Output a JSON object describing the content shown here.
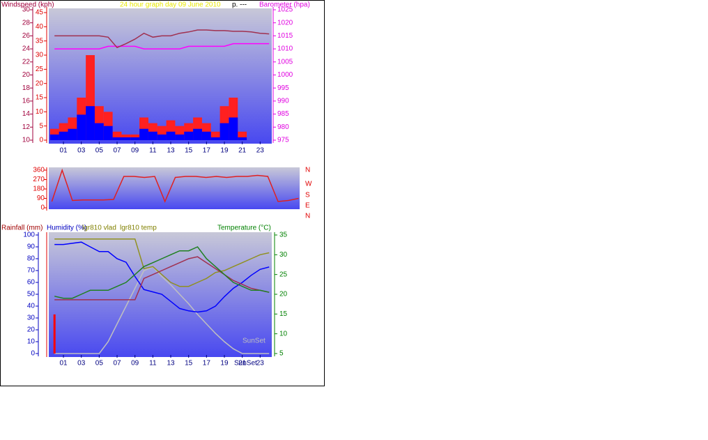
{
  "chart_data": [
    {
      "type": "line",
      "labels": [
        "Windspeed (kph)",
        "24 hour graph day   09 June 2010",
        "p.  ---",
        "Barometer (hpa)"
      ],
      "x": [
        0,
        1,
        2,
        3,
        4,
        5,
        6,
        7,
        8,
        9,
        10,
        11,
        12,
        13,
        14,
        15,
        16,
        17,
        18,
        19,
        20,
        21,
        22,
        23,
        24
      ],
      "xlim": [
        -0.64,
        24.3
      ],
      "xticks": [
        {
          "value": 1,
          "label": "01"
        },
        {
          "value": 3,
          "label": "03"
        },
        {
          "value": 5,
          "label": "05"
        },
        {
          "value": 7,
          "label": "07"
        },
        {
          "value": 9,
          "label": "09"
        },
        {
          "value": 11,
          "label": "11"
        },
        {
          "value": 13,
          "label": "13"
        },
        {
          "value": 15,
          "label": "15"
        },
        {
          "value": 17,
          "label": "17"
        },
        {
          "value": 19,
          "label": "19"
        },
        {
          "value": 21,
          "label": "21"
        },
        {
          "value": 23,
          "label": "23"
        }
      ],
      "ylim": [
        0,
        46
      ],
      "yticks": [
        0,
        5,
        10,
        15,
        20,
        25,
        30,
        35,
        40,
        45
      ],
      "y3lim": [
        10,
        30
      ],
      "y3ticks": [
        10,
        12,
        14,
        16,
        18,
        20,
        22,
        24,
        26,
        28,
        30
      ],
      "y2lim": [
        975,
        1025
      ],
      "y2ticks": [
        975,
        980,
        985,
        990,
        995,
        1000,
        1005,
        1010,
        1015,
        1020,
        1025
      ],
      "series": [
        {
          "color": "#ff2020",
          "kind": "bar",
          "values": [
            4,
            6,
            8,
            15,
            30,
            12,
            10,
            3,
            2,
            2,
            8,
            6,
            5,
            7,
            5,
            6,
            8,
            6,
            3,
            12,
            15,
            3,
            0,
            0,
            0
          ]
        },
        {
          "color": "#0000ff",
          "kind": "bar",
          "values": [
            2,
            3,
            4,
            9,
            12,
            6,
            5,
            1,
            1,
            1,
            4,
            3,
            2,
            3,
            2,
            3,
            4,
            3,
            1,
            6,
            8,
            1,
            0,
            0,
            0
          ]
        },
        {
          "color": "#ff00ff",
          "axis": "y2",
          "values": [
            1010,
            1010,
            1010,
            1010,
            1010,
            1010,
            1011,
            1011,
            1011,
            1011,
            1010,
            1010,
            1010,
            1010,
            1010,
            1011,
            1011,
            1011,
            1011,
            1011,
            1012,
            1012,
            1012,
            1012,
            1012
          ]
        },
        {
          "color": "#a03050",
          "axis": "y3",
          "values": [
            26,
            26,
            26,
            26,
            26,
            26,
            25.8,
            24.2,
            24.8,
            25.5,
            26.4,
            25.8,
            26,
            26,
            26.4,
            26.6,
            26.9,
            26.9,
            26.8,
            26.8,
            26.7,
            26.7,
            26.6,
            26.4,
            26.3
          ]
        }
      ]
    },
    {
      "type": "line",
      "dir_labels": [
        "N",
        "W",
        "S",
        "E",
        "N"
      ],
      "x": [
        0,
        1,
        2,
        3,
        4,
        5,
        6,
        7,
        8,
        9,
        10,
        11,
        12,
        13,
        14,
        15,
        16,
        17,
        18,
        19,
        20,
        21,
        22,
        23,
        24
      ],
      "xlim": [
        -0.3,
        24.1
      ],
      "ylim": [
        0,
        360
      ],
      "yticks": [
        0,
        90,
        180,
        270,
        360
      ],
      "series": [
        {
          "color": "#e02020",
          "values": [
            60,
            360,
            70,
            75,
            75,
            75,
            80,
            300,
            300,
            290,
            300,
            60,
            290,
            300,
            300,
            290,
            300,
            290,
            300,
            300,
            310,
            300,
            60,
            70,
            90
          ]
        }
      ]
    },
    {
      "type": "line",
      "labels": [
        "Rainfall (mm)",
        "Humidity (%)",
        "lgr810 vlad",
        "lgr810 temp",
        "Temperature (°C)"
      ],
      "annotations": [
        "SunSet",
        "SunSet"
      ],
      "x": [
        0,
        1,
        2,
        3,
        4,
        5,
        6,
        7,
        8,
        9,
        10,
        11,
        12,
        13,
        14,
        15,
        16,
        17,
        18,
        19,
        20,
        21,
        22,
        23,
        24
      ],
      "xlim": [
        -0.64,
        24.3
      ],
      "xticks": [
        {
          "value": 1,
          "label": "01"
        },
        {
          "value": 3,
          "label": "03"
        },
        {
          "value": 5,
          "label": "05"
        },
        {
          "value": 7,
          "label": "07"
        },
        {
          "value": 9,
          "label": "09"
        },
        {
          "value": 11,
          "label": "11"
        },
        {
          "value": 13,
          "label": "13"
        },
        {
          "value": 15,
          "label": "15"
        },
        {
          "value": 17,
          "label": "17"
        },
        {
          "value": 19,
          "label": "19"
        },
        {
          "value": 21,
          "label": "21"
        },
        {
          "value": 23,
          "label": "23"
        }
      ],
      "ylim": [
        0,
        100
      ],
      "yticks": [
        0,
        10,
        20,
        30,
        40,
        50,
        60,
        70,
        80,
        90,
        100
      ],
      "y2lim": [
        5,
        35
      ],
      "y2ticks": [
        5,
        10,
        15,
        20,
        25,
        30,
        35
      ],
      "series": [
        {
          "color": "#c0c0c0",
          "values": [
            0,
            0,
            0,
            0,
            0,
            0,
            10,
            25,
            40,
            55,
            70,
            73,
            65,
            58,
            50,
            42,
            33,
            25,
            17,
            10,
            4,
            0,
            0,
            0,
            0
          ]
        },
        {
          "color": "#ff0000",
          "kind": "spike",
          "values": [
            33,
            null,
            null,
            null,
            null,
            null,
            null,
            null,
            null,
            null,
            null,
            null,
            null,
            null,
            null,
            null,
            null,
            null,
            null,
            null,
            null,
            null,
            null,
            null,
            null
          ]
        },
        {
          "color": "#0000ff",
          "values": [
            92,
            92,
            93,
            94,
            90,
            86,
            86,
            80,
            77,
            65,
            54,
            52,
            50,
            44,
            38,
            36,
            35,
            36,
            40,
            48,
            55,
            60,
            66,
            71,
            73
          ]
        },
        {
          "color": "#909020",
          "axis": "y2",
          "values": [
            34,
            34,
            34,
            34,
            34,
            34,
            34,
            34,
            34,
            34,
            26.5,
            27,
            25,
            23,
            22,
            22,
            23,
            24,
            25.5,
            26,
            27,
            28,
            29,
            30,
            30.5
          ]
        },
        {
          "color": "#a03050",
          "axis": "y2",
          "values": [
            18.6,
            18.6,
            18.6,
            18.6,
            18.6,
            18.6,
            18.6,
            18.6,
            18.6,
            18.6,
            24,
            25,
            26,
            27,
            28,
            29,
            29.5,
            28,
            26.5,
            25,
            23.5,
            22.5,
            21.5,
            21,
            20.5
          ]
        },
        {
          "color": "#208020",
          "axis": "y2",
          "values": [
            19.5,
            19,
            19,
            20,
            21,
            21,
            21,
            22,
            23,
            25,
            27,
            28,
            29,
            30,
            31,
            31,
            32,
            29,
            27,
            25,
            23,
            22,
            21,
            21,
            20.5
          ]
        }
      ]
    }
  ]
}
